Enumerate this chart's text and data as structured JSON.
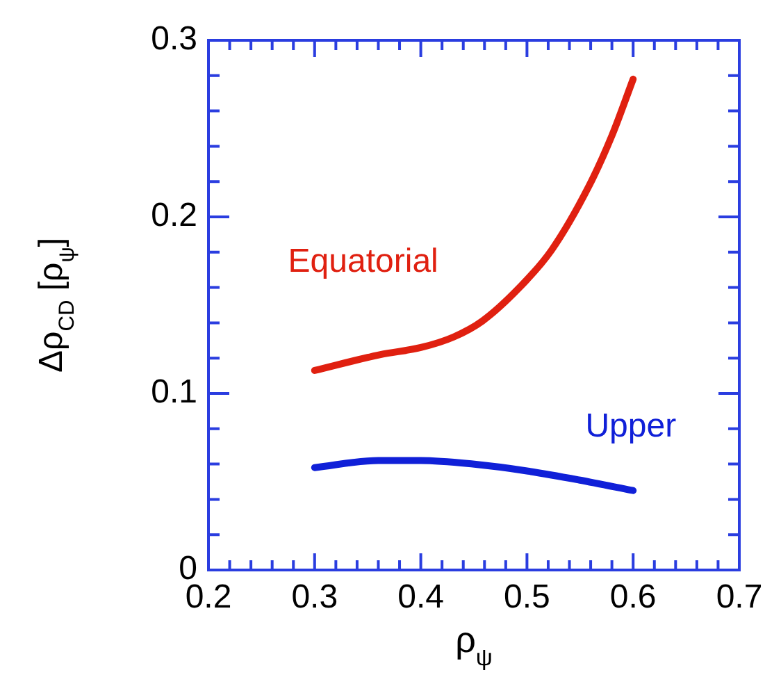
{
  "chart_data": {
    "type": "line",
    "xlabel": "ρ$_{ψ}$",
    "ylabel": "Δρ$_{CD}$ [ρ$_{ψ}$]",
    "xlim": [
      0.2,
      0.7
    ],
    "ylim": [
      0,
      0.3
    ],
    "xticks": [
      0.2,
      {
        "value": 0.22,
        "label": null
      },
      {
        "value": 0.24,
        "label": null
      },
      {
        "value": 0.26,
        "label": null
      },
      {
        "value": 0.28,
        "label": null
      },
      0.3,
      {
        "value": 0.32,
        "label": null
      },
      {
        "value": 0.34,
        "label": null
      },
      {
        "value": 0.36,
        "label": null
      },
      {
        "value": 0.38,
        "label": null
      },
      0.4,
      {
        "value": 0.42,
        "label": null
      },
      {
        "value": 0.44,
        "label": null
      },
      {
        "value": 0.46,
        "label": null
      },
      {
        "value": 0.48,
        "label": null
      },
      0.5,
      {
        "value": 0.52,
        "label": null
      },
      {
        "value": 0.54,
        "label": null
      },
      {
        "value": 0.56,
        "label": null
      },
      {
        "value": 0.58,
        "label": null
      },
      0.6,
      {
        "value": 0.62,
        "label": null
      },
      {
        "value": 0.64,
        "label": null
      },
      {
        "value": 0.66,
        "label": null
      },
      {
        "value": 0.68,
        "label": null
      },
      0.7
    ],
    "yticks": [
      0,
      {
        "value": 0.02,
        "label": null
      },
      {
        "value": 0.04,
        "label": null
      },
      {
        "value": 0.06,
        "label": null
      },
      {
        "value": 0.08,
        "label": null
      },
      0.1,
      {
        "value": 0.12,
        "label": null
      },
      {
        "value": 0.14,
        "label": null
      },
      {
        "value": 0.16,
        "label": null
      },
      {
        "value": 0.18,
        "label": null
      },
      0.2,
      {
        "value": 0.22,
        "label": null
      },
      {
        "value": 0.24,
        "label": null
      },
      {
        "value": 0.26,
        "label": null
      },
      {
        "value": 0.28,
        "label": null
      },
      0.3
    ],
    "grid": false,
    "legend": false,
    "marker": "none",
    "line_style": "solid",
    "series": [
      {
        "name": "Equatorial",
        "color": "#e02010",
        "x": [
          0.3,
          0.362,
          0.4,
          0.431,
          0.458,
          0.493,
          0.523,
          0.558,
          0.58,
          0.6
        ],
        "values": [
          0.113,
          0.122,
          0.126,
          0.132,
          0.141,
          0.16,
          0.181,
          0.217,
          0.246,
          0.278
        ]
      },
      {
        "name": "Upper",
        "color": "#1020d8",
        "x": [
          0.3,
          0.36,
          0.4,
          0.449,
          0.501,
          0.549,
          0.6
        ],
        "values": [
          0.058,
          0.062,
          0.062,
          0.06,
          0.056,
          0.051,
          0.045
        ]
      }
    ]
  }
}
